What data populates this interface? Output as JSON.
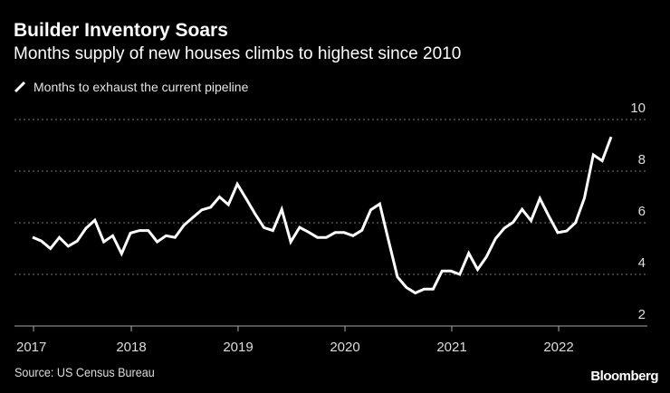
{
  "header": {
    "title": "Builder Inventory Soars",
    "subtitle": "Months supply of new houses climbs to highest since 2010"
  },
  "footer": {
    "source": "Source: US Census Bureau",
    "logo": "Bloomberg"
  },
  "colors": {
    "background": "#000000",
    "line": "#ffffff",
    "grid": "#777777"
  },
  "chart_data": {
    "type": "line",
    "title": "Builder Inventory Soars",
    "subtitle": "Months supply of new houses climbs to highest since 2010",
    "legend": {
      "placement": "top-left",
      "entries": [
        "Months to exhaust the current pipeline"
      ]
    },
    "ylim": [
      2,
      10
    ],
    "yticks": [
      "2",
      "4",
      "6",
      "8",
      "10"
    ],
    "xticks": [
      "2017",
      "2018",
      "2019",
      "2020",
      "2021",
      "2022"
    ],
    "grid": "horizontal dotted",
    "series": [
      {
        "name": "Months to exhaust the current pipeline",
        "start": "2017-01",
        "frequency": "monthly",
        "values": [
          5.44,
          5.29,
          5.0,
          5.43,
          5.09,
          5.29,
          5.79,
          6.1,
          5.26,
          5.5,
          4.8,
          5.6,
          5.7,
          5.7,
          5.26,
          5.5,
          5.43,
          5.9,
          6.2,
          6.5,
          6.6,
          7.0,
          6.7,
          7.5,
          6.93,
          6.34,
          5.81,
          5.7,
          6.52,
          5.26,
          5.82,
          5.64,
          5.43,
          5.43,
          5.62,
          5.62,
          5.5,
          5.71,
          6.5,
          6.73,
          5.3,
          3.9,
          3.49,
          3.28,
          3.43,
          3.43,
          4.13,
          4.13,
          4.0,
          4.82,
          4.19,
          4.68,
          5.38,
          5.79,
          6.02,
          6.52,
          6.08,
          6.94,
          6.26,
          5.62,
          5.68,
          6.0,
          6.96,
          8.63,
          8.4,
          9.33
        ]
      }
    ]
  }
}
